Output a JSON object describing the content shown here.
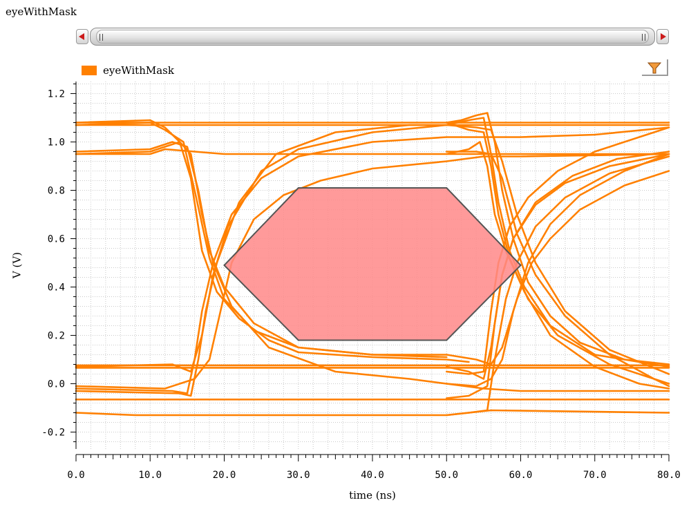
{
  "window": {
    "title": "eyeWithMask"
  },
  "toolbar": {
    "filter_icon": "funnel-icon"
  },
  "colors": {
    "trace": "#ff8000",
    "mask_fill": "#ff8888",
    "mask_edge": "#555555",
    "scroll_arrow": "#cc1b1b"
  },
  "chart_data": {
    "type": "line",
    "plot_kind": "eye diagram",
    "legend": [
      "eyeWithMask"
    ],
    "legend_placement": "top-left",
    "xlabel": "time (ns)",
    "ylabel": "V (V)",
    "xlim": [
      0,
      80
    ],
    "ylim": [
      -0.27,
      1.25
    ],
    "x_ticks": [
      "0.0",
      "10.0",
      "20.0",
      "30.0",
      "40.0",
      "50.0",
      "60.0",
      "70.0",
      "80.0"
    ],
    "y_ticks": [
      "-0.2",
      "0.0",
      "0.2",
      "0.4",
      "0.6",
      "0.8",
      "1.0",
      "1.2"
    ],
    "grid": true,
    "mask": {
      "points": [
        [
          20.0,
          0.49
        ],
        [
          30.0,
          0.81
        ],
        [
          50.0,
          0.81
        ],
        [
          60.0,
          0.49
        ],
        [
          50.0,
          0.18
        ],
        [
          30.0,
          0.18
        ]
      ]
    },
    "series": [
      {
        "values": [
          [
            0,
            1.08
          ],
          [
            80,
            1.08
          ]
        ]
      },
      {
        "values": [
          [
            0,
            1.07
          ],
          [
            80,
            1.07
          ]
        ]
      },
      {
        "values": [
          [
            0,
            0.076
          ],
          [
            80,
            0.076
          ]
        ]
      },
      {
        "values": [
          [
            0,
            0.066
          ],
          [
            80,
            0.066
          ]
        ]
      },
      {
        "values": [
          [
            0,
            -0.065
          ],
          [
            80,
            -0.065
          ]
        ]
      },
      {
        "values": [
          [
            0,
            -0.12
          ],
          [
            8,
            -0.13
          ],
          [
            50,
            -0.13
          ],
          [
            53,
            -0.12
          ],
          [
            56,
            -0.11
          ],
          [
            80,
            -0.12
          ]
        ]
      },
      {
        "values": [
          [
            0,
            0.95
          ],
          [
            10,
            0.95
          ],
          [
            12,
            0.97
          ],
          [
            20,
            0.95
          ],
          [
            80,
            0.95
          ]
        ]
      },
      {
        "values": [
          [
            0,
            1.08
          ],
          [
            10,
            1.09
          ],
          [
            12,
            1.06
          ],
          [
            14,
            1.0
          ],
          [
            15.5,
            0.85
          ],
          [
            17,
            0.55
          ],
          [
            19,
            0.38
          ],
          [
            22,
            0.27
          ],
          [
            26,
            0.18
          ],
          [
            30,
            0.13
          ],
          [
            40,
            0.11
          ],
          [
            50,
            0.1
          ],
          [
            53,
            0.09
          ]
        ]
      },
      {
        "values": [
          [
            0,
            1.07
          ],
          [
            10,
            1.08
          ],
          [
            12,
            1.05
          ],
          [
            14.5,
            1.0
          ],
          [
            16,
            0.8
          ],
          [
            18,
            0.52
          ],
          [
            20,
            0.35
          ],
          [
            24,
            0.22
          ],
          [
            30,
            0.15
          ],
          [
            40,
            0.12
          ],
          [
            50,
            0.12
          ]
        ]
      },
      {
        "values": [
          [
            0,
            0.96
          ],
          [
            10,
            0.97
          ],
          [
            13,
            1.0
          ],
          [
            15,
            0.98
          ],
          [
            16.5,
            0.8
          ],
          [
            18,
            0.55
          ],
          [
            20,
            0.4
          ],
          [
            24,
            0.25
          ],
          [
            30,
            0.15
          ],
          [
            40,
            0.12
          ],
          [
            50,
            0.11
          ]
        ]
      },
      {
        "values": [
          [
            0,
            0.95
          ],
          [
            10,
            0.96
          ],
          [
            14,
            1.0
          ],
          [
            15.5,
            0.95
          ],
          [
            17,
            0.7
          ],
          [
            18.5,
            0.5
          ],
          [
            21,
            0.32
          ],
          [
            26,
            0.15
          ],
          [
            35,
            0.05
          ],
          [
            45,
            0.02
          ],
          [
            50,
            0.0
          ],
          [
            55,
            -0.02
          ],
          [
            60,
            -0.03
          ],
          [
            70,
            -0.03
          ],
          [
            80,
            -0.03
          ]
        ]
      },
      {
        "values": [
          [
            0,
            -0.02
          ],
          [
            13,
            -0.03
          ],
          [
            15,
            -0.04
          ],
          [
            16,
            0.1
          ],
          [
            17,
            0.3
          ],
          [
            18.5,
            0.5
          ],
          [
            21,
            0.7
          ],
          [
            25,
            0.85
          ],
          [
            30,
            0.94
          ],
          [
            40,
            1.0
          ],
          [
            50,
            1.02
          ],
          [
            60,
            1.02
          ],
          [
            70,
            1.03
          ],
          [
            80,
            1.06
          ]
        ]
      },
      {
        "values": [
          [
            0,
            -0.03
          ],
          [
            14,
            -0.04
          ],
          [
            15.5,
            -0.05
          ],
          [
            16.5,
            0.1
          ],
          [
            17.5,
            0.3
          ],
          [
            19,
            0.5
          ],
          [
            22,
            0.75
          ],
          [
            27,
            0.95
          ],
          [
            35,
            1.04
          ],
          [
            45,
            1.07
          ],
          [
            50,
            1.07
          ]
        ]
      },
      {
        "values": [
          [
            0,
            0.07
          ],
          [
            13,
            0.08
          ],
          [
            15.5,
            0.05
          ],
          [
            17,
            0.2
          ],
          [
            18.5,
            0.45
          ],
          [
            20.5,
            0.65
          ],
          [
            25,
            0.88
          ],
          [
            30,
            0.97
          ],
          [
            40,
            1.04
          ],
          [
            50,
            1.07
          ]
        ]
      },
      {
        "values": [
          [
            0,
            -0.01
          ],
          [
            12,
            -0.02
          ],
          [
            16,
            0.02
          ],
          [
            18,
            0.1
          ],
          [
            19.5,
            0.3
          ],
          [
            21,
            0.5
          ],
          [
            24,
            0.68
          ],
          [
            28,
            0.78
          ],
          [
            33,
            0.84
          ],
          [
            40,
            0.89
          ],
          [
            50,
            0.92
          ],
          [
            55,
            0.94
          ],
          [
            60,
            0.94
          ],
          [
            80,
            0.95
          ]
        ]
      },
      {
        "values": [
          [
            50,
            1.08
          ],
          [
            52,
            1.09
          ],
          [
            54,
            1.11
          ],
          [
            55.5,
            1.12
          ],
          [
            56.5,
            1.0
          ],
          [
            57.5,
            0.8
          ],
          [
            59,
            0.6
          ],
          [
            61,
            0.42
          ],
          [
            64,
            0.28
          ],
          [
            68,
            0.17
          ],
          [
            74,
            0.1
          ],
          [
            80,
            0.08
          ]
        ]
      },
      {
        "values": [
          [
            50,
            1.07
          ],
          [
            53,
            1.09
          ],
          [
            55,
            1.1
          ],
          [
            56,
            0.95
          ],
          [
            57,
            0.75
          ],
          [
            58.5,
            0.55
          ],
          [
            60.5,
            0.4
          ],
          [
            64,
            0.24
          ],
          [
            70,
            0.12
          ],
          [
            80,
            0.07
          ]
        ]
      },
      {
        "values": [
          [
            50,
            1.08
          ],
          [
            53,
            1.05
          ],
          [
            55,
            1.04
          ],
          [
            56,
            0.9
          ],
          [
            57,
            0.7
          ],
          [
            58.5,
            0.52
          ],
          [
            61,
            0.35
          ],
          [
            65,
            0.2
          ],
          [
            72,
            0.08
          ],
          [
            80,
            0.0
          ]
        ]
      },
      {
        "values": [
          [
            50,
            0.95
          ],
          [
            53,
            0.97
          ],
          [
            54.5,
            1.0
          ],
          [
            55.5,
            0.9
          ],
          [
            56.5,
            0.7
          ],
          [
            58,
            0.55
          ],
          [
            60.5,
            0.38
          ],
          [
            64,
            0.2
          ],
          [
            70,
            0.07
          ],
          [
            76,
            0.0
          ],
          [
            80,
            -0.02
          ]
        ]
      },
      {
        "values": [
          [
            50,
            0.05
          ],
          [
            53,
            0.04
          ],
          [
            55,
            0.05
          ],
          [
            56,
            0.3
          ],
          [
            57,
            0.5
          ],
          [
            58.5,
            0.65
          ],
          [
            61,
            0.77
          ],
          [
            65,
            0.88
          ],
          [
            70,
            0.96
          ],
          [
            80,
            1.06
          ]
        ]
      },
      {
        "values": [
          [
            50,
            -0.06
          ],
          [
            53,
            -0.05
          ],
          [
            55.5,
            -0.01
          ],
          [
            56.5,
            0.25
          ],
          [
            57.5,
            0.45
          ],
          [
            59,
            0.6
          ],
          [
            62,
            0.74
          ],
          [
            66,
            0.83
          ],
          [
            72,
            0.9
          ],
          [
            80,
            0.95
          ]
        ]
      },
      {
        "values": [
          [
            50,
            0.07
          ],
          [
            53,
            0.05
          ],
          [
            55,
            0.02
          ],
          [
            56,
            0.15
          ],
          [
            57.5,
            0.45
          ],
          [
            59,
            0.6
          ],
          [
            62,
            0.75
          ],
          [
            67,
            0.86
          ],
          [
            73,
            0.93
          ],
          [
            80,
            0.96
          ]
        ]
      },
      {
        "values": [
          [
            50,
            -0.13
          ],
          [
            53,
            -0.12
          ],
          [
            55.5,
            -0.11
          ],
          [
            56.5,
            0.1
          ],
          [
            58,
            0.35
          ],
          [
            59.5,
            0.5
          ],
          [
            62,
            0.65
          ],
          [
            66,
            0.77
          ],
          [
            72,
            0.87
          ],
          [
            80,
            0.94
          ]
        ]
      },
      {
        "values": [
          [
            50,
            0.0
          ],
          [
            54,
            -0.01
          ],
          [
            56,
            0.02
          ],
          [
            57.5,
            0.1
          ],
          [
            59,
            0.3
          ],
          [
            61,
            0.5
          ],
          [
            64,
            0.66
          ],
          [
            68,
            0.78
          ],
          [
            74,
            0.88
          ],
          [
            80,
            0.95
          ]
        ]
      },
      {
        "values": [
          [
            50,
            0.12
          ],
          [
            54,
            0.1
          ],
          [
            56,
            0.08
          ],
          [
            57.5,
            0.15
          ],
          [
            59.5,
            0.35
          ],
          [
            61.5,
            0.5
          ],
          [
            64,
            0.6
          ],
          [
            68,
            0.72
          ],
          [
            74,
            0.82
          ],
          [
            80,
            0.88
          ]
        ]
      },
      {
        "values": [
          [
            50,
            0.96
          ],
          [
            54,
            0.96
          ],
          [
            56,
            0.95
          ],
          [
            57.5,
            0.85
          ],
          [
            59.5,
            0.62
          ],
          [
            62,
            0.45
          ],
          [
            66,
            0.28
          ],
          [
            72,
            0.12
          ],
          [
            78,
            0.02
          ],
          [
            80,
            -0.01
          ]
        ]
      },
      {
        "values": [
          [
            50,
            1.07
          ],
          [
            54,
            1.06
          ],
          [
            56,
            1.05
          ],
          [
            57.5,
            0.92
          ],
          [
            59.5,
            0.7
          ],
          [
            62,
            0.5
          ],
          [
            66,
            0.3
          ],
          [
            72,
            0.14
          ],
          [
            80,
            0.04
          ]
        ]
      }
    ]
  }
}
